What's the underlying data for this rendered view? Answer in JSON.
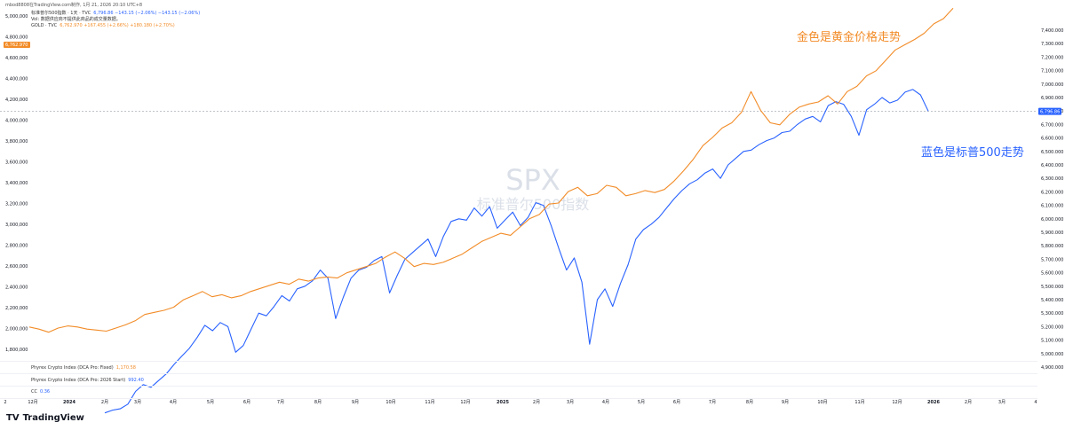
{
  "header": {
    "credit": "mbod8808在TradingView.com制作, 1月 21, 2026 20:10 UTC+8",
    "legend_spx_name": "标准普尔500指数 · 1天 · TVC",
    "legend_spx_values": "6,796.86  −143.15 (−2.06%)  −143.15 (−2.06%)",
    "legend_vol": "Vol: 数据供应商不提供此商品的成交量数据。",
    "legend_gold_name": "GOLD · TVC",
    "legend_gold_values": "6,762.970  +167.455 (+2.66%)  +180.180 (+2.70%)"
  },
  "watermark": {
    "symbol": "SPX",
    "name": "标准普尔500指数"
  },
  "annotations": {
    "gold": "金色是黄金价格走势",
    "spx": "蓝色是标普500走势"
  },
  "indicators": [
    {
      "label": "Phyrex Crypto Index (DCA Pro: Fixed)",
      "value": "1,170.58",
      "color": "#f28c28"
    },
    {
      "label": "Phyrex Crypto Index (DCA Pro: 2026 Start)",
      "value": "992.40",
      "color": "#2962ff"
    },
    {
      "label": "CC",
      "value": "0.36",
      "color": "#2962ff"
    }
  ],
  "brand": {
    "logo_mark": "TV",
    "name": "TradingView"
  },
  "chart_data": {
    "type": "line",
    "left_axis": {
      "ticks": [
        "5,000,000",
        "4,800,000",
        "4,600,000",
        "4,400,000",
        "4,200,000",
        "4,000,000",
        "3,800,000",
        "3,600,000",
        "3,400,000",
        "3,200,000",
        "3,000,000",
        "2,800,000",
        "2,600,000",
        "2,400,000",
        "2,200,000",
        "2,000,000",
        "1,800,000"
      ],
      "current_label": "6,762.970",
      "current_color": "#f28c28"
    },
    "right_axis": {
      "ticks": [
        "7,400.000",
        "7,300.000",
        "7,200.000",
        "7,100.000",
        "7,000.000",
        "6,900.000",
        "6,800.000",
        "6,700.000",
        "6,600.000",
        "6,500.000",
        "6,400.000",
        "6,300.000",
        "6,200.000",
        "6,100.000",
        "6,000.000",
        "5,900.000",
        "5,800.000",
        "5,700.000",
        "5,600.000",
        "5,500.000",
        "5,400.000",
        "5,300.000",
        "5,200.000",
        "5,100.000",
        "5,000.000",
        "4,900.000"
      ],
      "current_label": "6,796.86",
      "current_color": "#2962ff",
      "current_value": 6796.86
    },
    "x_ticks": [
      "2",
      "12月",
      "2024",
      "2月",
      "3月",
      "4月",
      "5月",
      "6月",
      "7月",
      "8月",
      "9月",
      "10月",
      "11月",
      "12月",
      "2025",
      "2月",
      "3月",
      "4月",
      "5月",
      "6月",
      "7月",
      "8月",
      "9月",
      "10月",
      "11月",
      "12月",
      "2026",
      "2月",
      "3月",
      "4"
    ],
    "series": [
      {
        "name": "标准普尔500指数",
        "color": "#2962ff",
        "axis": "right",
        "values": [
          4560,
          4580,
          4590,
          4625,
          4720,
          4770,
          4750,
          4800,
          4850,
          4920,
          4980,
          5040,
          5120,
          5210,
          5170,
          5230,
          5200,
          5010,
          5060,
          5180,
          5300,
          5280,
          5350,
          5430,
          5390,
          5480,
          5500,
          5540,
          5620,
          5560,
          5260,
          5420,
          5560,
          5620,
          5640,
          5690,
          5720,
          5450,
          5580,
          5700,
          5750,
          5800,
          5850,
          5720,
          5870,
          5980,
          6000,
          5990,
          6080,
          6020,
          6090,
          5930,
          5990,
          6050,
          5950,
          6010,
          6120,
          6100,
          5950,
          5780,
          5620,
          5710,
          5530,
          5070,
          5400,
          5480,
          5350,
          5520,
          5660,
          5850,
          5920,
          5960,
          6010,
          6080,
          6150,
          6210,
          6260,
          6290,
          6340,
          6370,
          6300,
          6400,
          6450,
          6500,
          6510,
          6550,
          6580,
          6600,
          6640,
          6650,
          6700,
          6740,
          6760,
          6720,
          6840,
          6870,
          6850,
          6760,
          6620,
          6810,
          6850,
          6900,
          6860,
          6880,
          6940,
          6960,
          6920,
          6800
        ]
      },
      {
        "name": "GOLD",
        "color": "#f28c28",
        "axis": "left",
        "values": [
          2040,
          2020,
          1990,
          2030,
          2050,
          2040,
          2020,
          2010,
          2000,
          2030,
          2060,
          2100,
          2160,
          2180,
          2200,
          2230,
          2300,
          2340,
          2380,
          2330,
          2350,
          2320,
          2340,
          2380,
          2410,
          2440,
          2470,
          2450,
          2500,
          2480,
          2510,
          2520,
          2510,
          2560,
          2590,
          2620,
          2650,
          2710,
          2760,
          2700,
          2620,
          2650,
          2640,
          2660,
          2700,
          2740,
          2800,
          2860,
          2900,
          2940,
          2920,
          3000,
          3080,
          3120,
          3220,
          3230,
          3340,
          3380,
          3300,
          3320,
          3400,
          3380,
          3300,
          3320,
          3350,
          3330,
          3360,
          3440,
          3540,
          3650,
          3780,
          3860,
          3950,
          4000,
          4100,
          4300,
          4120,
          4000,
          3980,
          4080,
          4150,
          4180,
          4200,
          4260,
          4180,
          4300,
          4350,
          4450,
          4500,
          4600,
          4700,
          4750,
          4800,
          4860,
          4950,
          5000,
          5100
        ]
      }
    ]
  }
}
